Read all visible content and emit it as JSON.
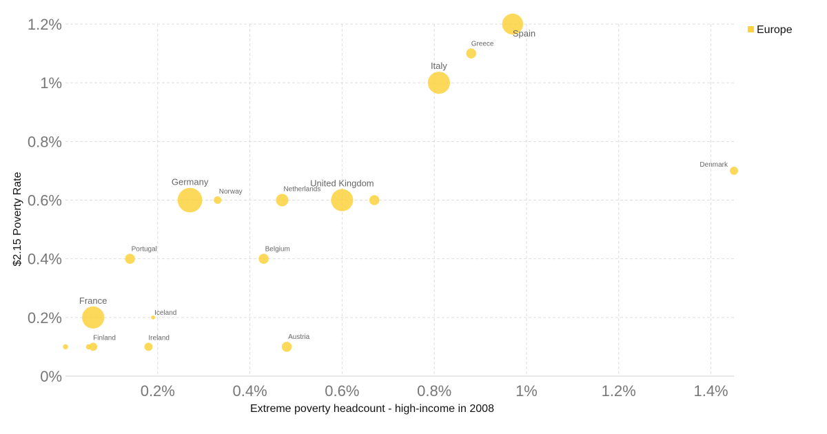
{
  "chart_data": {
    "type": "scatter",
    "title": "",
    "xlabel": "Extreme poverty headcount - high-income in 2008",
    "ylabel": "$2.15 Poverty Rate",
    "xlim": [
      0,
      1.45
    ],
    "ylim": [
      0,
      1.2
    ],
    "x_ticks": [
      {
        "value": 0.2,
        "label": "0.2%"
      },
      {
        "value": 0.4,
        "label": "0.4%"
      },
      {
        "value": 0.6,
        "label": "0.6%"
      },
      {
        "value": 0.8,
        "label": "0.8%"
      },
      {
        "value": 1.0,
        "label": "1%"
      },
      {
        "value": 1.2,
        "label": "1.2%"
      },
      {
        "value": 1.4,
        "label": "1.4%"
      }
    ],
    "y_ticks": [
      {
        "value": 0,
        "label": "0%"
      },
      {
        "value": 0.2,
        "label": "0.2%"
      },
      {
        "value": 0.4,
        "label": "0.4%"
      },
      {
        "value": 0.6,
        "label": "0.6%"
      },
      {
        "value": 0.8,
        "label": "0.8%"
      },
      {
        "value": 1.0,
        "label": "1%"
      },
      {
        "value": 1.2,
        "label": "1.2%"
      }
    ],
    "grid": true,
    "legend_position": "top-right",
    "series": [
      {
        "name": "Europe",
        "color": "#FDD23E",
        "points": [
          {
            "label": "Spain",
            "x": 0.97,
            "y": 1.2,
            "size": 3.0
          },
          {
            "label": "Greece",
            "x": 0.88,
            "y": 1.1,
            "size": 1.2
          },
          {
            "label": "Italy",
            "x": 0.81,
            "y": 1.0,
            "size": 3.2
          },
          {
            "label": "Denmark",
            "x": 1.45,
            "y": 0.7,
            "size": 0.9
          },
          {
            "label": "Germany",
            "x": 0.27,
            "y": 0.6,
            "size": 3.6
          },
          {
            "label": "Norway",
            "x": 0.33,
            "y": 0.6,
            "size": 0.8
          },
          {
            "label": "Netherlands",
            "x": 0.47,
            "y": 0.6,
            "size": 1.6
          },
          {
            "label": "United Kingdom",
            "x": 0.6,
            "y": 0.6,
            "size": 3.2
          },
          {
            "label": "",
            "x": 0.67,
            "y": 0.6,
            "size": 1.2
          },
          {
            "label": "Portugal",
            "x": 0.14,
            "y": 0.4,
            "size": 1.2
          },
          {
            "label": "Belgium",
            "x": 0.43,
            "y": 0.4,
            "size": 1.2
          },
          {
            "label": "France",
            "x": 0.06,
            "y": 0.2,
            "size": 3.2
          },
          {
            "label": "Iceland",
            "x": 0.19,
            "y": 0.2,
            "size": 0.2
          },
          {
            "label": "",
            "x": 0.0,
            "y": 0.1,
            "size": 0.4
          },
          {
            "label": "",
            "x": 0.05,
            "y": 0.1,
            "size": 0.4
          },
          {
            "label": "Finland",
            "x": 0.06,
            "y": 0.1,
            "size": 0.9
          },
          {
            "label": "Ireland",
            "x": 0.18,
            "y": 0.1,
            "size": 0.9
          },
          {
            "label": "Austria",
            "x": 0.48,
            "y": 0.1,
            "size": 1.2
          }
        ]
      }
    ]
  }
}
